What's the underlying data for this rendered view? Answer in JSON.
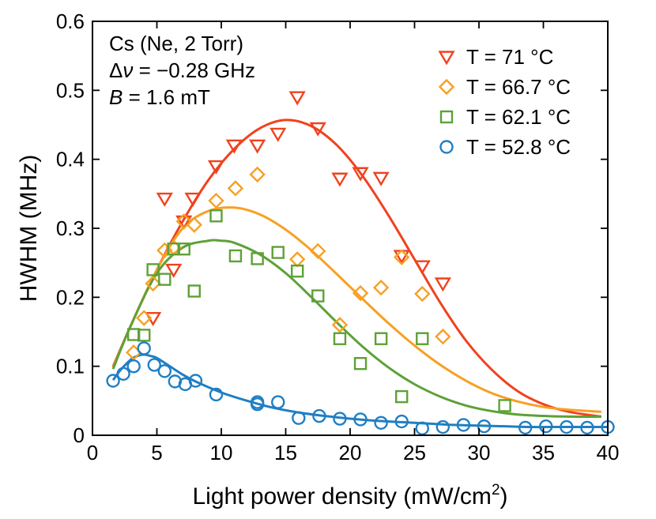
{
  "chart_data": {
    "type": "scatter",
    "title": "",
    "xlabel": "Light power density (mW/cm",
    "xlabel_sup": "2",
    "xlabel_close": ")",
    "ylabel": "HWHM (MHz)",
    "xlim": [
      0,
      40
    ],
    "ylim": [
      0,
      0.6
    ],
    "xticks": [
      0,
      5,
      10,
      15,
      20,
      25,
      30,
      35,
      40
    ],
    "xtick_labels": [
      "0",
      "5",
      "10",
      "15",
      "20",
      "25",
      "30",
      "35",
      "40"
    ],
    "yticks": [
      0,
      0.1,
      0.2,
      0.3,
      0.4,
      0.5,
      0.6
    ],
    "ytick_labels": [
      "0",
      "0.1",
      "0.2",
      "0.3",
      "0.4",
      "0.5",
      "0.6"
    ],
    "grid": false,
    "legend_position": "top-right",
    "annotations": {
      "line1": "Cs (Ne, 2 Torr)",
      "line2_delta": "Δ",
      "line2_var": "ν",
      "line2_rest": " = −0.28 GHz",
      "line3_var": "B",
      "line3_rest": " = 1.6 mT"
    },
    "series": [
      {
        "name": "T = 71 °C",
        "color": "#f0421e",
        "marker": "triangle-down",
        "x": [
          4.7,
          5.6,
          6.3,
          7.1,
          7.8,
          9.6,
          11.0,
          12.8,
          14.4,
          15.9,
          17.5,
          19.2,
          20.8,
          22.4,
          24.0,
          25.6,
          27.2
        ],
        "y": [
          0.17,
          0.343,
          0.24,
          0.31,
          0.343,
          0.39,
          0.42,
          0.42,
          0.437,
          0.49,
          0.445,
          0.372,
          0.38,
          0.373,
          0.26,
          0.245,
          0.22
        ],
        "fit_x": [
          1.6,
          3,
          5,
          7,
          9,
          11,
          13,
          15,
          17,
          19,
          21,
          23,
          25,
          27,
          29,
          31,
          33,
          35,
          37,
          39.5
        ],
        "fit_y": [
          0.1,
          0.16,
          0.24,
          0.31,
          0.37,
          0.415,
          0.445,
          0.457,
          0.448,
          0.42,
          0.375,
          0.318,
          0.255,
          0.192,
          0.137,
          0.095,
          0.064,
          0.045,
          0.034,
          0.027
        ]
      },
      {
        "name": "T = 66.7 °C",
        "color": "#f7a024",
        "marker": "diamond",
        "x": [
          3.2,
          4.0,
          4.7,
          5.6,
          6.3,
          7.1,
          7.9,
          9.6,
          11.1,
          12.8,
          15.9,
          17.5,
          19.2,
          20.8,
          22.4,
          24.0,
          25.6,
          27.2
        ],
        "y": [
          0.12,
          0.17,
          0.22,
          0.268,
          0.272,
          0.31,
          0.305,
          0.34,
          0.358,
          0.378,
          0.255,
          0.267,
          0.16,
          0.206,
          0.214,
          0.258,
          0.205,
          0.143
        ],
        "fit_x": [
          1.6,
          3,
          5,
          7,
          9,
          11,
          13,
          15,
          17,
          19,
          21,
          23,
          25,
          27,
          29,
          31,
          33,
          35,
          37,
          39.5
        ],
        "fit_y": [
          0.098,
          0.16,
          0.24,
          0.3,
          0.325,
          0.33,
          0.32,
          0.298,
          0.268,
          0.233,
          0.197,
          0.162,
          0.13,
          0.102,
          0.079,
          0.061,
          0.049,
          0.041,
          0.037,
          0.034
        ]
      },
      {
        "name": "T = 62.1 °C",
        "color": "#5da137",
        "marker": "square",
        "x": [
          3.2,
          4.0,
          4.7,
          5.6,
          6.3,
          7.1,
          7.9,
          9.6,
          11.1,
          12.8,
          14.4,
          15.9,
          17.5,
          19.2,
          20.8,
          22.4,
          24.0,
          25.6,
          32.0
        ],
        "y": [
          0.146,
          0.145,
          0.24,
          0.226,
          0.27,
          0.27,
          0.209,
          0.318,
          0.26,
          0.256,
          0.265,
          0.238,
          0.202,
          0.14,
          0.104,
          0.14,
          0.056,
          0.14,
          0.043
        ],
        "fit_x": [
          1.6,
          3,
          5,
          7,
          9,
          10,
          11,
          13,
          15,
          17,
          19,
          21,
          23,
          25,
          27,
          29,
          31,
          33,
          35,
          37,
          39.5
        ],
        "fit_y": [
          0.096,
          0.16,
          0.235,
          0.272,
          0.282,
          0.282,
          0.279,
          0.262,
          0.235,
          0.2,
          0.163,
          0.128,
          0.098,
          0.074,
          0.056,
          0.043,
          0.035,
          0.03,
          0.028,
          0.027,
          0.027
        ]
      },
      {
        "name": "T = 52.8 °C",
        "color": "#1f7fc4",
        "marker": "circle",
        "x": [
          1.6,
          2.4,
          3.2,
          4.0,
          4.8,
          5.6,
          6.4,
          7.2,
          8.0,
          9.6,
          12.8,
          12.8,
          14.4,
          16.0,
          17.6,
          19.2,
          20.8,
          22.4,
          24.0,
          25.6,
          27.2,
          28.8,
          30.4,
          33.6,
          35.2,
          36.8,
          38.4,
          40.0
        ],
        "y": [
          0.079,
          0.089,
          0.1,
          0.126,
          0.102,
          0.093,
          0.078,
          0.074,
          0.079,
          0.059,
          0.045,
          0.048,
          0.048,
          0.025,
          0.028,
          0.024,
          0.023,
          0.018,
          0.02,
          0.01,
          0.012,
          0.015,
          0.013,
          0.011,
          0.013,
          0.012,
          0.011,
          0.012
        ],
        "fit_x": [
          1.6,
          2.2,
          3,
          3.5,
          4,
          4.5,
          5,
          6,
          7,
          8,
          10,
          12,
          14,
          16,
          18,
          20,
          22,
          24,
          26,
          28,
          30,
          32,
          34,
          36,
          38,
          40
        ],
        "fit_y": [
          0.08,
          0.095,
          0.11,
          0.115,
          0.117,
          0.115,
          0.112,
          0.1,
          0.088,
          0.078,
          0.062,
          0.05,
          0.04,
          0.033,
          0.028,
          0.024,
          0.021,
          0.019,
          0.017,
          0.015,
          0.014,
          0.013,
          0.012,
          0.012,
          0.012,
          0.012
        ]
      }
    ]
  }
}
